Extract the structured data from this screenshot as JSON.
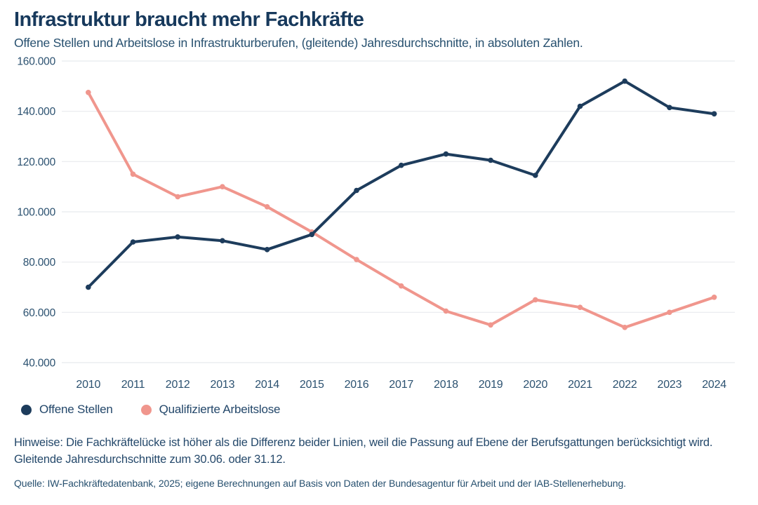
{
  "header": {
    "title": "Infrastruktur braucht mehr Fachkräfte",
    "subtitle": "Offene Stellen und Arbeitslose in Infrastrukturberufen, (gleitende) Jahresdurchschnitte, in absoluten Zahlen."
  },
  "chart_data": {
    "type": "line",
    "title": "Infrastruktur braucht mehr Fachkräfte",
    "xlabel": "",
    "ylabel": "",
    "categories": [
      "2010",
      "2011",
      "2012",
      "2013",
      "2014",
      "2015",
      "2016",
      "2017",
      "2018",
      "2019",
      "2020",
      "2021",
      "2022",
      "2023",
      "2024"
    ],
    "series": [
      {
        "name": "Offene Stellen",
        "color": "#1d3c5c",
        "values": [
          70000,
          88000,
          90000,
          88500,
          85000,
          91000,
          108500,
          118500,
          123000,
          120500,
          114500,
          142000,
          152000,
          141500,
          139000
        ]
      },
      {
        "name": "Qualifizierte Arbeitslose",
        "color": "#f0968d",
        "values": [
          147500,
          115000,
          106000,
          110000,
          102000,
          92000,
          81000,
          70500,
          60500,
          55000,
          65000,
          62000,
          54000,
          60000,
          66000
        ]
      }
    ],
    "ylim": [
      40000,
      160000
    ],
    "y_ticks": [
      160000,
      140000,
      120000,
      100000,
      80000,
      60000,
      40000
    ],
    "y_tick_labels": [
      "160.000",
      "140.000",
      "120.000",
      "100.000",
      "80.000",
      "60.000",
      "40.000"
    ],
    "grid": "horizontal",
    "gridline_color": "#e8eaee",
    "axis_text_color": "#2b5170",
    "legend_position": "bottom-left"
  },
  "legend": {
    "items": [
      {
        "label": "Offene Stellen",
        "color": "#1d3c5c"
      },
      {
        "label": "Qualifizierte Arbeitslose",
        "color": "#f0968d"
      }
    ]
  },
  "footer": {
    "hinweise": "Hinweise: Die Fachkräftelücke ist höher als die Differenz beider Linien, weil die Passung auf Ebene der Berufsgattungen berücksichtigt wird. Gleitende Jahresdurchschnitte zum 30.06. oder 31.12.",
    "quelle": "Quelle: IW-Fachkräftedatenbank, 2025; eigene Berechnungen auf Basis von Daten der Bundesagentur für Arbeit und der IAB-Stellenerhebung."
  }
}
